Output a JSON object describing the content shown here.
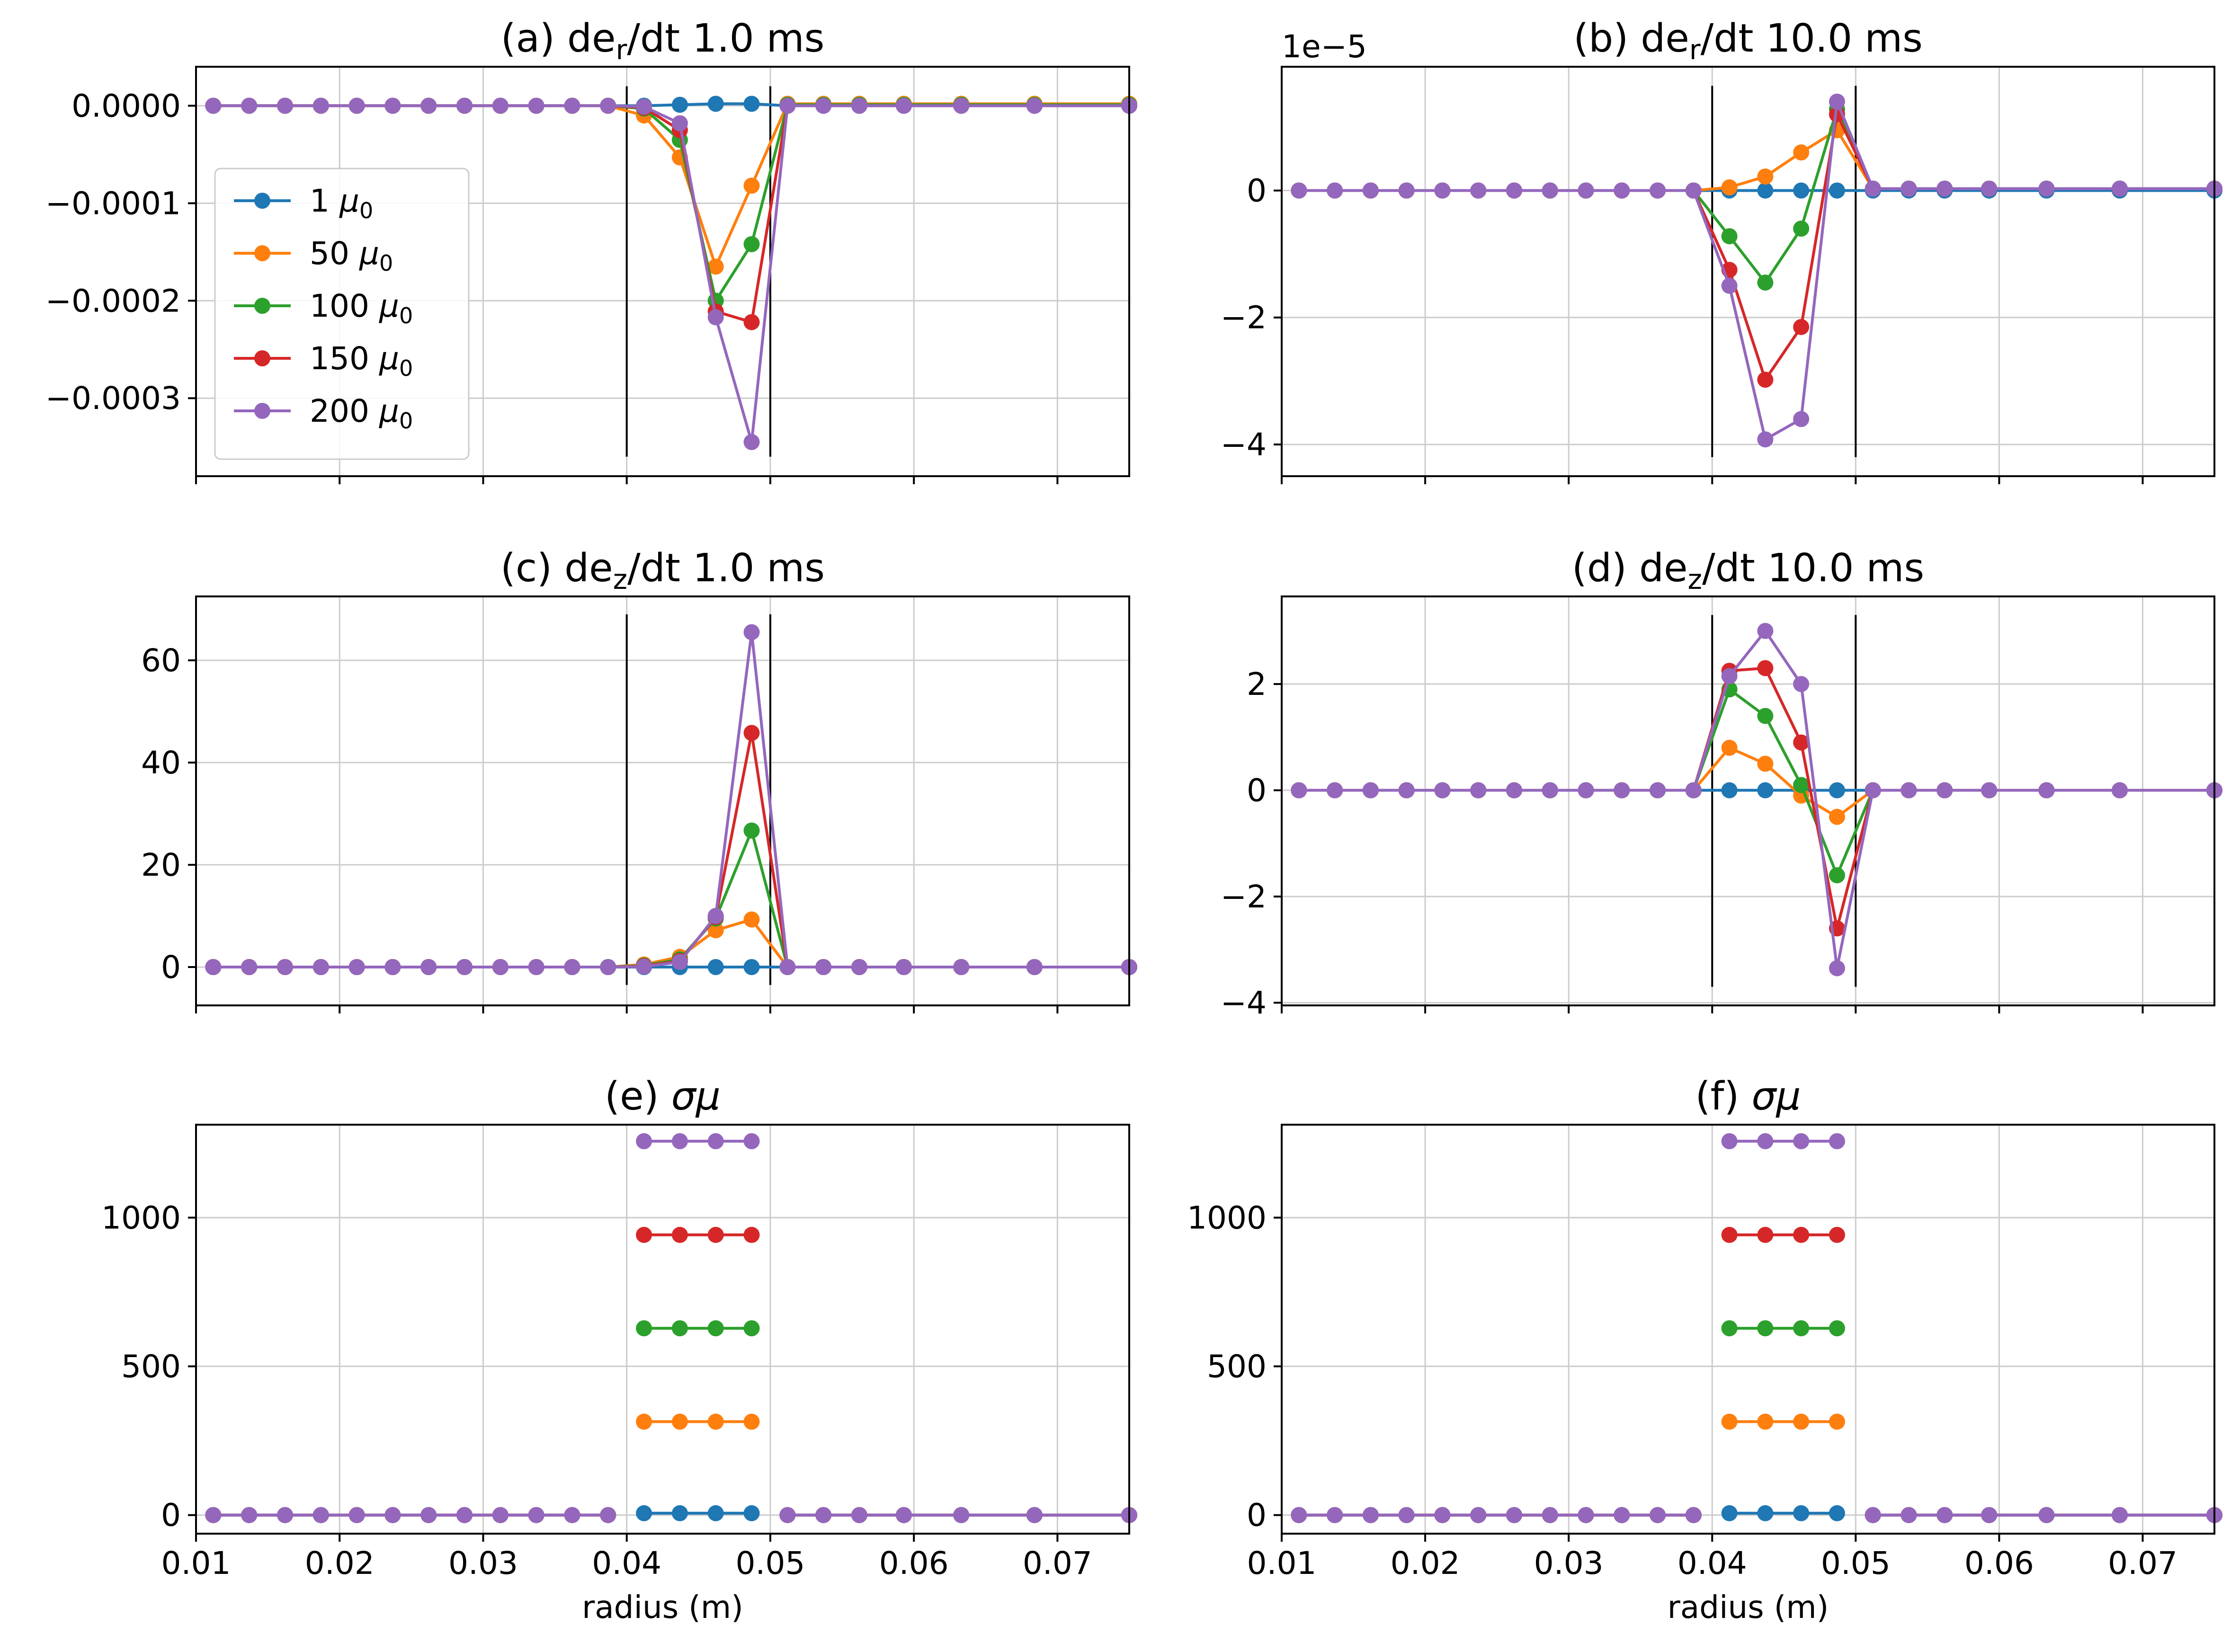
{
  "figure": {
    "series_colors": [
      "#1f77b4",
      "#ff7f0e",
      "#2ca02c",
      "#d62728",
      "#9467bd"
    ],
    "grid_color": "#cccccc",
    "boundary_line_color": "#000000"
  },
  "chart_data": [
    {
      "type": "line",
      "panel": "a",
      "title": "(a) de_r/dt 1.0 ms",
      "title_parts": {
        "prefix": "(a) de",
        "sub": "r",
        "suffix": "/dt 1.0 ms"
      },
      "xlabel": "",
      "ylabel": "",
      "xlim": [
        0.01,
        0.075
      ],
      "ylim": [
        -0.00038,
        4e-05
      ],
      "xticks": [
        0.01,
        0.02,
        0.03,
        0.04,
        0.05,
        0.06,
        0.07
      ],
      "xtick_labels_visible": false,
      "yticks": [
        0.0,
        -0.0001,
        -0.0002,
        -0.0003
      ],
      "ytick_labels": [
        "0.0000",
        "−0.0001",
        "−0.0002",
        "−0.0003"
      ],
      "grid": true,
      "boundary_lines": {
        "x": [
          0.04,
          0.05
        ],
        "y": [
          -0.00036,
          2e-05
        ]
      },
      "legend": {
        "placement": "center-left",
        "entries": [
          {
            "number": "1",
            "symbol": "μ",
            "sub": "0"
          },
          {
            "number": "50",
            "symbol": "μ",
            "sub": "0"
          },
          {
            "number": "100",
            "symbol": "μ",
            "sub": "0"
          },
          {
            "number": "150",
            "symbol": "μ",
            "sub": "0"
          },
          {
            "number": "200",
            "symbol": "μ",
            "sub": "0"
          }
        ]
      },
      "x": [
        0.0112,
        0.0137,
        0.0162,
        0.0187,
        0.0212,
        0.0237,
        0.0262,
        0.0287,
        0.0312,
        0.0337,
        0.0362,
        0.0387,
        0.0412,
        0.0437,
        0.0462,
        0.0487,
        0.0512,
        0.0537,
        0.0562,
        0.0593,
        0.0633,
        0.0684,
        0.075
      ],
      "series": [
        {
          "values": [
            0,
            0,
            0,
            0,
            0,
            0,
            0,
            0,
            0,
            0,
            0,
            0,
            0,
            1e-06,
            2e-06,
            2e-06,
            0,
            0,
            0,
            0,
            0,
            0,
            0
          ]
        },
        {
          "values": [
            0,
            0,
            0,
            0,
            0,
            0,
            0,
            0,
            0,
            0,
            0,
            0,
            -1e-05,
            -5.3e-05,
            -0.000165,
            -8.2e-05,
            2e-06,
            2e-06,
            2e-06,
            2e-06,
            2e-06,
            2e-06,
            2e-06
          ]
        },
        {
          "values": [
            0,
            0,
            0,
            0,
            0,
            0,
            0,
            0,
            0,
            0,
            0,
            0,
            -3e-06,
            -3.5e-05,
            -0.0002,
            -0.000142,
            1e-06,
            1e-06,
            1e-06,
            1e-06,
            1e-06,
            1e-06,
            1e-06
          ]
        },
        {
          "values": [
            0,
            0,
            0,
            0,
            0,
            0,
            0,
            0,
            0,
            0,
            0,
            0,
            -2e-06,
            -2.5e-05,
            -0.000211,
            -0.000222,
            0,
            0,
            0,
            0,
            0,
            0,
            0
          ]
        },
        {
          "values": [
            0,
            0,
            0,
            0,
            0,
            0,
            0,
            0,
            0,
            0,
            0,
            0,
            -1e-06,
            -1.8e-05,
            -0.000217,
            -0.000345,
            0,
            0,
            0,
            0,
            0,
            0,
            0
          ]
        }
      ]
    },
    {
      "type": "line",
      "panel": "b",
      "title": "(b) de_r/dt 10.0 ms",
      "title_parts": {
        "prefix": "(b) de",
        "sub": "r",
        "suffix": "/dt 10.0 ms"
      },
      "xlabel": "",
      "ylabel": "",
      "offset_label": "1e−5",
      "xlim": [
        0.01,
        0.075
      ],
      "ylim": [
        -4.5,
        1.95
      ],
      "xticks": [
        0.01,
        0.02,
        0.03,
        0.04,
        0.05,
        0.06,
        0.07
      ],
      "xtick_labels_visible": false,
      "yticks": [
        0,
        -2,
        -4
      ],
      "ytick_labels": [
        "0",
        "−2",
        "−4"
      ],
      "grid": true,
      "boundary_lines": {
        "x": [
          0.04,
          0.05
        ],
        "y": [
          -4.2,
          1.65
        ]
      },
      "x": [
        0.0112,
        0.0137,
        0.0162,
        0.0187,
        0.0212,
        0.0237,
        0.0262,
        0.0287,
        0.0312,
        0.0337,
        0.0362,
        0.0387,
        0.0412,
        0.0437,
        0.0462,
        0.0487,
        0.0512,
        0.0537,
        0.0562,
        0.0593,
        0.0633,
        0.0684,
        0.075
      ],
      "series": [
        {
          "values": [
            0,
            0,
            0,
            0,
            0,
            0,
            0,
            0,
            0,
            0,
            0,
            0,
            0,
            0,
            0,
            0,
            0,
            0,
            0,
            0,
            0,
            0,
            0
          ]
        },
        {
          "values": [
            0,
            0,
            0,
            0,
            0,
            0,
            0,
            0,
            0,
            0,
            0,
            0,
            0.05,
            0.22,
            0.6,
            0.95,
            0.03,
            0.03,
            0.03,
            0.03,
            0.03,
            0.03,
            0.03
          ]
        },
        {
          "values": [
            0,
            0,
            0,
            0,
            0,
            0,
            0,
            0,
            0,
            0,
            0,
            0,
            -0.72,
            -1.45,
            -0.6,
            1.28,
            0.03,
            0.03,
            0.03,
            0.03,
            0.03,
            0.03,
            0.03
          ]
        },
        {
          "values": [
            0,
            0,
            0,
            0,
            0,
            0,
            0,
            0,
            0,
            0,
            0,
            0,
            -1.25,
            -2.98,
            -2.15,
            1.2,
            0.03,
            0.03,
            0.03,
            0.03,
            0.03,
            0.03,
            0.03
          ]
        },
        {
          "values": [
            0,
            0,
            0,
            0,
            0,
            0,
            0,
            0,
            0,
            0,
            0,
            0,
            -1.5,
            -3.92,
            -3.6,
            1.4,
            0.03,
            0.03,
            0.03,
            0.03,
            0.03,
            0.03,
            0.03
          ]
        }
      ]
    },
    {
      "type": "line",
      "panel": "c",
      "title": "(c) de_z/dt 1.0 ms",
      "title_parts": {
        "prefix": "(c) de",
        "sub": "z",
        "suffix": "/dt 1.0 ms"
      },
      "xlabel": "",
      "ylabel": "",
      "xlim": [
        0.01,
        0.075
      ],
      "ylim": [
        -7.5,
        72.5
      ],
      "xticks": [
        0.01,
        0.02,
        0.03,
        0.04,
        0.05,
        0.06,
        0.07
      ],
      "xtick_labels_visible": false,
      "yticks": [
        0,
        20,
        40,
        60
      ],
      "ytick_labels": [
        "0",
        "20",
        "40",
        "60"
      ],
      "grid": true,
      "boundary_lines": {
        "x": [
          0.04,
          0.05
        ],
        "y": [
          -3.5,
          69
        ]
      },
      "x": [
        0.0112,
        0.0137,
        0.0162,
        0.0187,
        0.0212,
        0.0237,
        0.0262,
        0.0287,
        0.0312,
        0.0337,
        0.0362,
        0.0387,
        0.0412,
        0.0437,
        0.0462,
        0.0487,
        0.0512,
        0.0537,
        0.0562,
        0.0593,
        0.0633,
        0.0684,
        0.075
      ],
      "series": [
        {
          "values": [
            0,
            0,
            0,
            0,
            0,
            0,
            0,
            0,
            0,
            0,
            0,
            0,
            0,
            0,
            0,
            0,
            0,
            0,
            0,
            0,
            0,
            0,
            0
          ]
        },
        {
          "values": [
            0,
            0,
            0,
            0,
            0,
            0,
            0,
            0,
            0,
            0,
            0,
            0,
            0.5,
            2,
            7.2,
            9.3,
            0,
            0,
            0,
            0,
            0,
            0,
            0
          ]
        },
        {
          "values": [
            0,
            0,
            0,
            0,
            0,
            0,
            0,
            0,
            0,
            0,
            0,
            0,
            0.3,
            1.5,
            9.5,
            26.7,
            0,
            0,
            0,
            0,
            0,
            0,
            0
          ]
        },
        {
          "values": [
            0,
            0,
            0,
            0,
            0,
            0,
            0,
            0,
            0,
            0,
            0,
            0,
            0.2,
            1.2,
            9.8,
            45.8,
            0,
            0,
            0,
            0,
            0,
            0,
            0
          ]
        },
        {
          "values": [
            0,
            0,
            0,
            0,
            0,
            0,
            0,
            0,
            0,
            0,
            0,
            0,
            0.1,
            1,
            10,
            65.5,
            0,
            0,
            0,
            0,
            0,
            0,
            0
          ]
        }
      ]
    },
    {
      "type": "line",
      "panel": "d",
      "title": "(d) de_z/dt 10.0 ms",
      "title_parts": {
        "prefix": "(d) de",
        "sub": "z",
        "suffix": "/dt 10.0 ms"
      },
      "xlabel": "",
      "ylabel": "",
      "xlim": [
        0.01,
        0.075
      ],
      "ylim": [
        -4.05,
        3.65
      ],
      "xticks": [
        0.01,
        0.02,
        0.03,
        0.04,
        0.05,
        0.06,
        0.07
      ],
      "xtick_labels_visible": false,
      "yticks": [
        -4,
        -2,
        0,
        2
      ],
      "ytick_labels": [
        "−4",
        "−2",
        "0",
        "2"
      ],
      "grid": true,
      "boundary_lines": {
        "x": [
          0.04,
          0.05
        ],
        "y": [
          -3.7,
          3.3
        ]
      },
      "x": [
        0.0112,
        0.0137,
        0.0162,
        0.0187,
        0.0212,
        0.0237,
        0.0262,
        0.0287,
        0.0312,
        0.0337,
        0.0362,
        0.0387,
        0.0412,
        0.0437,
        0.0462,
        0.0487,
        0.0512,
        0.0537,
        0.0562,
        0.0593,
        0.0633,
        0.0684,
        0.075
      ],
      "series": [
        {
          "values": [
            0,
            0,
            0,
            0,
            0,
            0,
            0,
            0,
            0,
            0,
            0,
            0,
            0,
            0,
            0,
            0,
            0,
            0,
            0,
            0,
            0,
            0,
            0
          ]
        },
        {
          "values": [
            0,
            0,
            0,
            0,
            0,
            0,
            0,
            0,
            0,
            0,
            0,
            0,
            0.8,
            0.5,
            -0.1,
            -0.5,
            0,
            0,
            0,
            0,
            0,
            0,
            0
          ]
        },
        {
          "values": [
            0,
            0,
            0,
            0,
            0,
            0,
            0,
            0,
            0,
            0,
            0,
            0,
            1.9,
            1.4,
            0.1,
            -1.6,
            0,
            0,
            0,
            0,
            0,
            0,
            0
          ]
        },
        {
          "values": [
            0,
            0,
            0,
            0,
            0,
            0,
            0,
            0,
            0,
            0,
            0,
            0,
            2.25,
            2.3,
            0.9,
            -2.6,
            0,
            0,
            0,
            0,
            0,
            0,
            0
          ]
        },
        {
          "values": [
            0,
            0,
            0,
            0,
            0,
            0,
            0,
            0,
            0,
            0,
            0,
            0,
            2.15,
            3.0,
            2.0,
            -3.35,
            0,
            0,
            0,
            0,
            0,
            0,
            0
          ]
        }
      ]
    },
    {
      "type": "line",
      "panel": "e",
      "title": "(e) σμ",
      "title_parts": {
        "prefix": "(e) ",
        "sub": "",
        "suffix": "σμ"
      },
      "xlabel": "radius (m)",
      "ylabel": "",
      "xlim": [
        0.01,
        0.075
      ],
      "ylim": [
        -62.5,
        1312.5
      ],
      "xticks": [
        0.01,
        0.02,
        0.03,
        0.04,
        0.05,
        0.06,
        0.07
      ],
      "xtick_labels": [
        "0.01",
        "0.02",
        "0.03",
        "0.04",
        "0.05",
        "0.06",
        "0.07"
      ],
      "xtick_labels_visible": true,
      "yticks": [
        0,
        500,
        1000
      ],
      "ytick_labels": [
        "0",
        "500",
        "1000"
      ],
      "grid": true,
      "segments": [
        {
          "x": [
            0.0112,
            0.0137,
            0.0162,
            0.0187,
            0.0212,
            0.0237,
            0.0262,
            0.0287,
            0.0312,
            0.0337,
            0.0362,
            0.0387
          ]
        },
        {
          "x": [
            0.0412,
            0.0437,
            0.0462,
            0.0487
          ]
        },
        {
          "x": [
            0.0512,
            0.0537,
            0.0562,
            0.0593,
            0.0633,
            0.0684,
            0.075
          ]
        }
      ],
      "series": [
        {
          "values": [
            0,
            6.3,
            0
          ]
        },
        {
          "values": [
            0,
            314,
            0
          ]
        },
        {
          "values": [
            0,
            628,
            0
          ]
        },
        {
          "values": [
            0,
            942,
            0
          ]
        },
        {
          "values": [
            0,
            1257,
            0
          ]
        }
      ]
    },
    {
      "type": "line",
      "panel": "f",
      "title": "(f) σμ",
      "title_parts": {
        "prefix": "(f) ",
        "sub": "",
        "suffix": "σμ"
      },
      "xlabel": "radius (m)",
      "ylabel": "",
      "xlim": [
        0.01,
        0.075
      ],
      "ylim": [
        -62.5,
        1312.5
      ],
      "xticks": [
        0.01,
        0.02,
        0.03,
        0.04,
        0.05,
        0.06,
        0.07
      ],
      "xtick_labels": [
        "0.01",
        "0.02",
        "0.03",
        "0.04",
        "0.05",
        "0.06",
        "0.07"
      ],
      "xtick_labels_visible": true,
      "yticks": [
        0,
        500,
        1000
      ],
      "ytick_labels": [
        "0",
        "500",
        "1000"
      ],
      "grid": true,
      "segments": [
        {
          "x": [
            0.0112,
            0.0137,
            0.0162,
            0.0187,
            0.0212,
            0.0237,
            0.0262,
            0.0287,
            0.0312,
            0.0337,
            0.0362,
            0.0387
          ]
        },
        {
          "x": [
            0.0412,
            0.0437,
            0.0462,
            0.0487
          ]
        },
        {
          "x": [
            0.0512,
            0.0537,
            0.0562,
            0.0593,
            0.0633,
            0.0684,
            0.075
          ]
        }
      ],
      "series": [
        {
          "values": [
            0,
            6.3,
            0
          ]
        },
        {
          "values": [
            0,
            314,
            0
          ]
        },
        {
          "values": [
            0,
            628,
            0
          ]
        },
        {
          "values": [
            0,
            942,
            0
          ]
        },
        {
          "values": [
            0,
            1257,
            0
          ]
        }
      ]
    }
  ]
}
